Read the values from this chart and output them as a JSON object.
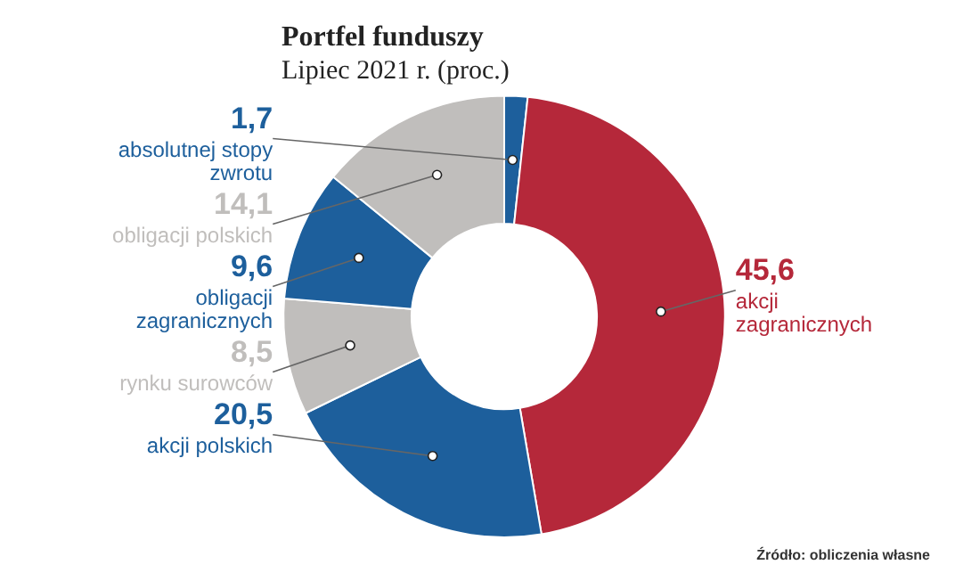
{
  "chart_data": {
    "type": "donut",
    "title": "Portfel funduszy",
    "subtitle": "Lipiec 2021 r. (proc.)",
    "categories": [
      "absolutnej stopy zwrotu",
      "akcji zagranicznych",
      "akcji polskich",
      "rynku surowców",
      "obligacji zagranicznych",
      "obligacji polskich"
    ],
    "values": [
      1.7,
      45.6,
      20.5,
      8.5,
      9.6,
      14.1
    ],
    "colors": [
      "#1d5f9c",
      "#b5283a",
      "#1d5f9c",
      "#c0bebc",
      "#1d5f9c",
      "#c0bebc"
    ],
    "value_labels": [
      "1,7",
      "45,6",
      "20,5",
      "8,5",
      "9,6",
      "14,1"
    ],
    "data_labels": true,
    "legend": false,
    "annotations": [
      "Źródło: obliczenia własne"
    ]
  }
}
